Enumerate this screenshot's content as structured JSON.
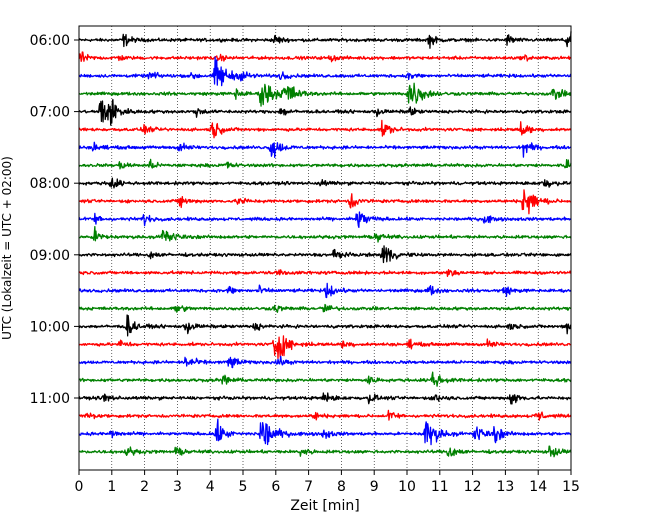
{
  "chart_data": {
    "type": "line",
    "subtype": "helicorder",
    "xlabel": "Zeit  [min]",
    "ylabel": "UTC (Lokalzeit = UTC + 02:00)",
    "xlim": [
      0,
      15
    ],
    "x_ticks": [
      0,
      1,
      2,
      3,
      4,
      5,
      6,
      7,
      8,
      9,
      10,
      11,
      12,
      13,
      14,
      15
    ],
    "x_tick_labels": [
      "0",
      "1",
      "2",
      "3",
      "4",
      "5",
      "6",
      "7",
      "8",
      "9",
      "10",
      "11",
      "12",
      "13",
      "14",
      "15"
    ],
    "vertical_grid": true,
    "grid_style": "dotted",
    "row_interval_min": 15,
    "trace_colors": [
      "#000000",
      "#ff0000",
      "#0000ff",
      "#008000"
    ],
    "y_tick_labels": [
      {
        "row": 0,
        "label": "06:00"
      },
      {
        "row": 4,
        "label": "07:00"
      },
      {
        "row": 8,
        "label": "08:00"
      },
      {
        "row": 12,
        "label": "09:00"
      },
      {
        "row": 16,
        "label": "10:00"
      },
      {
        "row": 20,
        "label": "11:00"
      }
    ],
    "rows": [
      {
        "start": "06:00",
        "color": "#000000",
        "events": [
          [
            1.4,
            0.6
          ],
          [
            6.0,
            0.5
          ],
          [
            10.7,
            0.6
          ],
          [
            13.1,
            0.5
          ],
          [
            14.9,
            1.0
          ]
        ]
      },
      {
        "start": "06:15",
        "color": "#ff0000",
        "events": [
          [
            0.1,
            0.5
          ],
          [
            1.2,
            0.3
          ],
          [
            4.3,
            0.3
          ],
          [
            7.7,
            0.3
          ],
          [
            13.6,
            0.3
          ]
        ]
      },
      {
        "start": "06:30",
        "color": "#0000ff",
        "events": [
          [
            2.2,
            0.5
          ],
          [
            3.5,
            0.4
          ],
          [
            4.2,
            1.9
          ],
          [
            5.0,
            0.5
          ],
          [
            6.2,
            0.4
          ],
          [
            10.1,
            0.4
          ]
        ]
      },
      {
        "start": "06:45",
        "color": "#008000",
        "events": [
          [
            4.8,
            0.5
          ],
          [
            5.6,
            1.8
          ],
          [
            6.3,
            1.5
          ],
          [
            10.1,
            2.0
          ],
          [
            14.5,
            0.7
          ]
        ]
      },
      {
        "start": "07:00",
        "color": "#000000",
        "events": [
          [
            0.7,
            2.0
          ],
          [
            1.0,
            0.7
          ],
          [
            3.6,
            0.4
          ],
          [
            6.2,
            0.5
          ],
          [
            9.1,
            0.4
          ],
          [
            10.1,
            0.4
          ]
        ]
      },
      {
        "start": "07:15",
        "color": "#ff0000",
        "events": [
          [
            2.0,
            0.4
          ],
          [
            4.1,
            0.9
          ],
          [
            9.3,
            0.8
          ],
          [
            13.5,
            0.8
          ]
        ]
      },
      {
        "start": "07:30",
        "color": "#0000ff",
        "events": [
          [
            0.5,
            0.5
          ],
          [
            3.1,
            0.5
          ],
          [
            5.9,
            1.2
          ],
          [
            13.6,
            0.8
          ]
        ]
      },
      {
        "start": "07:45",
        "color": "#008000",
        "events": [
          [
            1.3,
            0.4
          ],
          [
            2.2,
            0.4
          ],
          [
            4.5,
            0.4
          ],
          [
            14.9,
            0.5
          ]
        ]
      },
      {
        "start": "08:00",
        "color": "#000000",
        "events": [
          [
            1.0,
            0.7
          ],
          [
            7.4,
            0.3
          ],
          [
            14.2,
            0.6
          ]
        ]
      },
      {
        "start": "08:15",
        "color": "#ff0000",
        "events": [
          [
            3.1,
            0.6
          ],
          [
            4.9,
            0.5
          ],
          [
            8.3,
            0.8
          ],
          [
            13.6,
            1.8
          ]
        ]
      },
      {
        "start": "08:30",
        "color": "#0000ff",
        "events": [
          [
            0.5,
            0.5
          ],
          [
            2.0,
            0.5
          ],
          [
            8.5,
            1.2
          ],
          [
            12.4,
            0.5
          ]
        ]
      },
      {
        "start": "08:45",
        "color": "#008000",
        "events": [
          [
            0.5,
            0.8
          ],
          [
            2.6,
            1.2
          ],
          [
            9.1,
            0.5
          ]
        ]
      },
      {
        "start": "09:00",
        "color": "#000000",
        "events": [
          [
            2.2,
            0.4
          ],
          [
            7.8,
            0.7
          ],
          [
            9.3,
            1.3
          ]
        ]
      },
      {
        "start": "09:15",
        "color": "#ff0000",
        "events": [
          [
            6.1,
            0.4
          ],
          [
            11.3,
            0.5
          ]
        ]
      },
      {
        "start": "09:30",
        "color": "#0000ff",
        "events": [
          [
            4.6,
            0.4
          ],
          [
            5.5,
            0.4
          ],
          [
            7.6,
            0.8
          ],
          [
            10.7,
            0.5
          ],
          [
            13.0,
            0.5
          ]
        ]
      },
      {
        "start": "09:45",
        "color": "#008000",
        "events": [
          [
            3.0,
            0.5
          ],
          [
            6.0,
            0.4
          ],
          [
            7.5,
            0.5
          ]
        ]
      },
      {
        "start": "10:00",
        "color": "#000000",
        "events": [
          [
            1.5,
            1.0
          ],
          [
            3.3,
            0.7
          ],
          [
            5.4,
            0.4
          ],
          [
            13.1,
            0.4
          ],
          [
            14.9,
            0.5
          ]
        ]
      },
      {
        "start": "10:15",
        "color": "#ff0000",
        "events": [
          [
            1.3,
            0.4
          ],
          [
            6.0,
            2.0
          ],
          [
            8.1,
            0.4
          ],
          [
            10.1,
            0.4
          ],
          [
            12.5,
            0.4
          ]
        ]
      },
      {
        "start": "10:30",
        "color": "#0000ff",
        "events": [
          [
            3.3,
            0.8
          ],
          [
            4.6,
            0.8
          ],
          [
            6.1,
            0.5
          ]
        ]
      },
      {
        "start": "10:45",
        "color": "#008000",
        "events": [
          [
            4.4,
            0.6
          ],
          [
            8.8,
            0.5
          ],
          [
            10.8,
            1.0
          ]
        ]
      },
      {
        "start": "11:00",
        "color": "#000000",
        "events": [
          [
            0.8,
            0.5
          ],
          [
            7.5,
            0.6
          ],
          [
            8.9,
            0.5
          ],
          [
            10.9,
            0.5
          ],
          [
            13.2,
            0.8
          ]
        ]
      },
      {
        "start": "11:15",
        "color": "#ff0000",
        "events": [
          [
            0.3,
            0.4
          ],
          [
            7.2,
            0.4
          ],
          [
            9.5,
            0.5
          ],
          [
            14.0,
            0.6
          ]
        ]
      },
      {
        "start": "11:30",
        "color": "#0000ff",
        "events": [
          [
            1.0,
            0.5
          ],
          [
            4.2,
            1.2
          ],
          [
            5.6,
            2.0
          ],
          [
            7.5,
            0.5
          ],
          [
            10.6,
            1.8
          ],
          [
            12.1,
            1.0
          ],
          [
            12.7,
            0.8
          ]
        ]
      },
      {
        "start": "11:45",
        "color": "#008000",
        "events": [
          [
            1.5,
            0.5
          ],
          [
            3.0,
            0.4
          ],
          [
            6.8,
            0.5
          ],
          [
            11.3,
            0.8
          ],
          [
            14.4,
            0.7
          ]
        ]
      }
    ]
  }
}
